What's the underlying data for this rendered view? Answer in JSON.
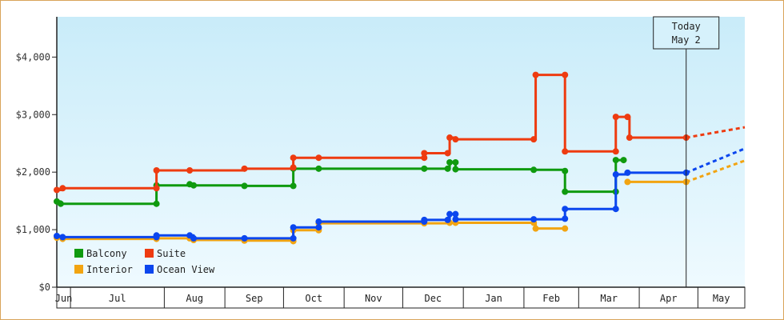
{
  "chart_data": {
    "type": "line",
    "step": true,
    "title": "",
    "xlabel": "",
    "ylabel": "",
    "ylim": [
      0,
      4700
    ],
    "yticks": [
      0,
      1000,
      2000,
      3000,
      4000
    ],
    "ytick_labels": [
      "$0",
      "$1,000",
      "$2,000",
      "$3,000",
      "$4,000"
    ],
    "x_unit": "day",
    "x_start": "Jun 1",
    "months": [
      {
        "label": "Jun",
        "start": 0,
        "end": 7
      },
      {
        "label": "Jul",
        "start": 7,
        "end": 55
      },
      {
        "label": "Aug",
        "start": 55,
        "end": 86
      },
      {
        "label": "Sep",
        "start": 86,
        "end": 116
      },
      {
        "label": "Oct",
        "start": 116,
        "end": 147
      },
      {
        "label": "Nov",
        "start": 147,
        "end": 177
      },
      {
        "label": "Dec",
        "start": 177,
        "end": 208
      },
      {
        "label": "Jan",
        "start": 208,
        "end": 239
      },
      {
        "label": "Feb",
        "start": 239,
        "end": 267
      },
      {
        "label": "Mar",
        "start": 267,
        "end": 298
      },
      {
        "label": "Apr",
        "start": 298,
        "end": 328
      },
      {
        "label": "May",
        "start": 328,
        "end": 359
      }
    ],
    "xlim": [
      0,
      352
    ],
    "today": {
      "label": "Today",
      "date": "May 2",
      "x": 322
    },
    "legend_position": "bottom-left",
    "grid": false,
    "series": [
      {
        "name": "Balcony",
        "color": "#0f9a0f",
        "points": [
          [
            0,
            1490
          ],
          [
            2,
            1450
          ],
          [
            51,
            1450
          ],
          [
            51,
            1770
          ],
          [
            68,
            1790
          ],
          [
            70,
            1770
          ],
          [
            96,
            1760
          ],
          [
            121,
            1760
          ],
          [
            121,
            2060
          ],
          [
            134,
            2060
          ],
          [
            188,
            2060
          ],
          [
            200,
            2060
          ],
          [
            201,
            2170
          ],
          [
            204,
            2170
          ],
          [
            204,
            2050
          ],
          [
            244,
            2040
          ],
          [
            260,
            2020
          ],
          [
            260,
            1660
          ],
          [
            286,
            1660
          ],
          [
            286,
            2210
          ],
          [
            290,
            2210
          ]
        ],
        "forecast": []
      },
      {
        "name": "Suite",
        "color": "#ee3b10",
        "points": [
          [
            0,
            1690
          ],
          [
            3,
            1720
          ],
          [
            51,
            1720
          ],
          [
            51,
            2030
          ],
          [
            68,
            2030
          ],
          [
            96,
            2060
          ],
          [
            121,
            2080
          ],
          [
            121,
            2250
          ],
          [
            134,
            2250
          ],
          [
            188,
            2250
          ],
          [
            188,
            2330
          ],
          [
            200,
            2330
          ],
          [
            201,
            2600
          ],
          [
            204,
            2570
          ],
          [
            244,
            2570
          ],
          [
            245,
            3690
          ],
          [
            260,
            3690
          ],
          [
            260,
            2360
          ],
          [
            286,
            2360
          ],
          [
            286,
            2960
          ],
          [
            292,
            2960
          ],
          [
            293,
            2600
          ],
          [
            322,
            2600
          ]
        ],
        "forecast": [
          [
            322,
            2600
          ],
          [
            352,
            2780
          ]
        ]
      },
      {
        "name": "Interior",
        "color": "#f2a411",
        "points": [
          [
            0,
            860
          ],
          [
            3,
            840
          ],
          [
            51,
            840
          ],
          [
            51,
            850
          ],
          [
            68,
            850
          ],
          [
            70,
            820
          ],
          [
            96,
            810
          ],
          [
            121,
            800
          ],
          [
            121,
            990
          ],
          [
            134,
            990
          ],
          [
            134,
            1110
          ],
          [
            188,
            1110
          ],
          [
            201,
            1120
          ],
          [
            204,
            1120
          ],
          [
            244,
            1120
          ],
          [
            245,
            1020
          ],
          [
            260,
            1020
          ]
        ],
        "forecast": [],
        "late_points": [
          [
            292,
            1830
          ],
          [
            322,
            1830
          ]
        ],
        "late_forecast": [
          [
            322,
            1830
          ],
          [
            352,
            2200
          ]
        ]
      },
      {
        "name": "Ocean View",
        "color": "#0b46ee",
        "points": [
          [
            0,
            890
          ],
          [
            3,
            870
          ],
          [
            51,
            870
          ],
          [
            51,
            900
          ],
          [
            68,
            900
          ],
          [
            70,
            850
          ],
          [
            96,
            850
          ],
          [
            121,
            850
          ],
          [
            121,
            1040
          ],
          [
            134,
            1040
          ],
          [
            134,
            1140
          ],
          [
            188,
            1140
          ],
          [
            188,
            1170
          ],
          [
            200,
            1170
          ],
          [
            201,
            1270
          ],
          [
            204,
            1270
          ],
          [
            204,
            1180
          ],
          [
            244,
            1180
          ],
          [
            260,
            1190
          ],
          [
            260,
            1360
          ],
          [
            286,
            1360
          ],
          [
            286,
            1960
          ],
          [
            292,
            1990
          ],
          [
            322,
            1990
          ]
        ],
        "forecast": [
          [
            322,
            1990
          ],
          [
            352,
            2410
          ]
        ]
      }
    ]
  }
}
